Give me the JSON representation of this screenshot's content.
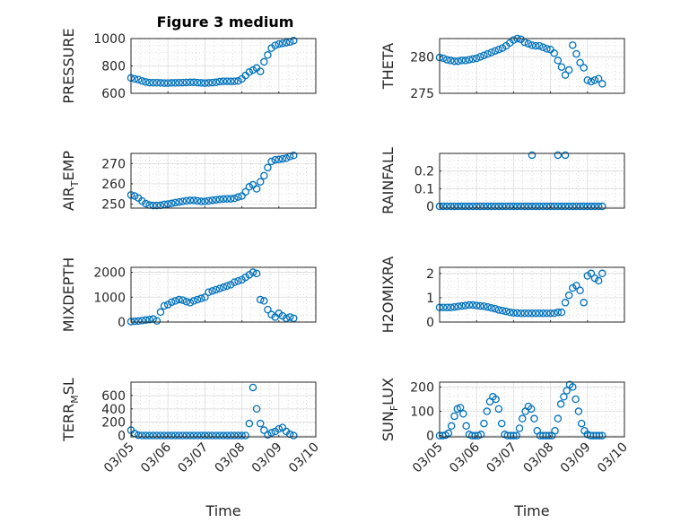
{
  "figure_title": "Figure 3 medium",
  "colors": {
    "series": "#0072BD",
    "axis": "#262626",
    "grid": "#dcdcdc",
    "minor_grid": "#bdbdbd"
  },
  "chart_data": [
    {
      "type": "scatter",
      "panel": 1,
      "ylabel": "PRESSURE",
      "yticks": [
        600,
        800,
        1000
      ],
      "ylim": [
        600,
        1000
      ],
      "xlim": [
        0,
        5
      ],
      "xticks": [
        0,
        1,
        2,
        3,
        4,
        5
      ],
      "x": [
        0.0,
        0.1,
        0.2,
        0.3,
        0.4,
        0.5,
        0.6,
        0.7,
        0.8,
        0.9,
        1.0,
        1.1,
        1.2,
        1.3,
        1.4,
        1.5,
        1.6,
        1.7,
        1.8,
        1.9,
        2.0,
        2.1,
        2.2,
        2.3,
        2.4,
        2.5,
        2.6,
        2.7,
        2.8,
        2.9,
        3.0,
        3.1,
        3.2,
        3.3,
        3.4,
        3.5,
        3.6,
        3.7,
        3.8,
        3.9,
        4.0,
        4.1,
        4.2,
        4.3,
        4.4
      ],
      "y": [
        712,
        705,
        700,
        690,
        683,
        678,
        677,
        677,
        676,
        675,
        675,
        676,
        676,
        677,
        678,
        679,
        680,
        680,
        678,
        676,
        675,
        676,
        678,
        680,
        685,
        688,
        688,
        687,
        688,
        690,
        705,
        730,
        755,
        770,
        785,
        760,
        830,
        880,
        930,
        950,
        960,
        965,
        970,
        975,
        985
      ]
    },
    {
      "type": "scatter",
      "panel": 2,
      "ylabel": "THETA",
      "yticks": [
        275,
        280
      ],
      "ylim": [
        275,
        282.5
      ],
      "xlim": [
        0,
        5
      ],
      "xticks": [
        0,
        1,
        2,
        3,
        4,
        5
      ],
      "x": [
        0.0,
        0.1,
        0.2,
        0.3,
        0.4,
        0.5,
        0.6,
        0.7,
        0.8,
        0.9,
        1.0,
        1.1,
        1.2,
        1.3,
        1.4,
        1.5,
        1.6,
        1.7,
        1.8,
        1.9,
        2.0,
        2.1,
        2.2,
        2.3,
        2.4,
        2.5,
        2.6,
        2.7,
        2.8,
        2.9,
        3.0,
        3.1,
        3.2,
        3.3,
        3.4,
        3.5,
        3.6,
        3.7,
        3.8,
        3.9,
        4.0,
        4.1,
        4.2,
        4.3,
        4.4
      ],
      "y": [
        279.9,
        279.8,
        279.6,
        279.5,
        279.4,
        279.4,
        279.5,
        279.5,
        279.6,
        279.7,
        279.8,
        280.0,
        280.2,
        280.4,
        280.6,
        280.8,
        281.0,
        281.2,
        281.5,
        281.9,
        282.3,
        282.5,
        282.4,
        282.0,
        281.8,
        281.6,
        281.5,
        281.5,
        281.3,
        281.1,
        281.0,
        280.5,
        279.5,
        278.6,
        277.5,
        278.2,
        281.6,
        280.4,
        279.2,
        278.5,
        276.8,
        276.6,
        276.8,
        277.0,
        276.3
      ]
    },
    {
      "type": "scatter",
      "panel": 3,
      "ylabel": "AIR_TEMP",
      "yticks": [
        250,
        260,
        270
      ],
      "ylim": [
        248,
        275
      ],
      "xlim": [
        0,
        5
      ],
      "xticks": [
        0,
        1,
        2,
        3,
        4,
        5
      ],
      "x": [
        0.0,
        0.1,
        0.2,
        0.3,
        0.4,
        0.5,
        0.6,
        0.7,
        0.8,
        0.9,
        1.0,
        1.1,
        1.2,
        1.3,
        1.4,
        1.5,
        1.6,
        1.7,
        1.8,
        1.9,
        2.0,
        2.1,
        2.2,
        2.3,
        2.4,
        2.5,
        2.6,
        2.7,
        2.8,
        2.9,
        3.0,
        3.1,
        3.2,
        3.3,
        3.4,
        3.5,
        3.6,
        3.7,
        3.8,
        3.9,
        4.0,
        4.1,
        4.2,
        4.3,
        4.4
      ],
      "y": [
        254.5,
        254.0,
        253.0,
        251.5,
        250.2,
        249.5,
        249.3,
        249.3,
        249.4,
        249.8,
        250.0,
        250.3,
        250.7,
        251.0,
        251.3,
        251.6,
        251.8,
        251.8,
        251.6,
        251.3,
        251.3,
        251.6,
        251.9,
        252.1,
        252.3,
        252.5,
        252.6,
        252.6,
        252.8,
        253.5,
        254.0,
        256.0,
        258.5,
        259.5,
        257.5,
        261.0,
        264.0,
        268.0,
        271.0,
        271.8,
        272.0,
        272.3,
        272.6,
        273.5,
        274.0
      ]
    },
    {
      "type": "scatter",
      "panel": 4,
      "ylabel": "RAINFALL",
      "yticks": [
        0,
        0.1,
        0.2
      ],
      "yticklabels": [
        "0",
        "0.1",
        "0.2"
      ],
      "ylim": [
        -0.01,
        0.3
      ],
      "xlim": [
        0,
        5
      ],
      "xticks": [
        0,
        1,
        2,
        3,
        4,
        5
      ],
      "x": [
        0.0,
        0.1,
        0.2,
        0.3,
        0.4,
        0.5,
        0.6,
        0.7,
        0.8,
        0.9,
        1.0,
        1.1,
        1.2,
        1.3,
        1.4,
        1.5,
        1.6,
        1.7,
        1.8,
        1.9,
        2.0,
        2.1,
        2.2,
        2.3,
        2.4,
        2.5,
        2.6,
        2.7,
        2.8,
        2.9,
        3.0,
        3.1,
        3.2,
        3.3,
        3.4,
        3.5,
        3.6,
        3.7,
        3.8,
        3.9,
        4.0,
        4.1,
        4.2,
        4.3,
        4.4,
        2.5,
        3.2,
        3.4
      ],
      "y": [
        0,
        0,
        0,
        0,
        0,
        0,
        0,
        0,
        0,
        0,
        0,
        0,
        0,
        0,
        0,
        0,
        0,
        0,
        0,
        0,
        0,
        0,
        0,
        0,
        0,
        0,
        0,
        0,
        0,
        0,
        0,
        0,
        0,
        0,
        0,
        0,
        0,
        0,
        0,
        0,
        0,
        0,
        0,
        0,
        0,
        0.29,
        0.29,
        0.29
      ]
    },
    {
      "type": "scatter",
      "panel": 5,
      "ylabel": "MIXDEPTH",
      "yticks": [
        0,
        1000,
        2000
      ],
      "ylim": [
        0,
        2200
      ],
      "xlim": [
        0,
        5
      ],
      "xticks": [
        0,
        1,
        2,
        3,
        4,
        5
      ],
      "x": [
        0.0,
        0.1,
        0.2,
        0.3,
        0.4,
        0.5,
        0.6,
        0.7,
        0.8,
        0.9,
        1.0,
        1.1,
        1.2,
        1.3,
        1.4,
        1.5,
        1.6,
        1.7,
        1.8,
        1.9,
        2.0,
        2.1,
        2.2,
        2.3,
        2.4,
        2.5,
        2.6,
        2.7,
        2.8,
        2.9,
        3.0,
        3.1,
        3.2,
        3.3,
        3.4,
        3.5,
        3.6,
        3.7,
        3.8,
        3.9,
        4.0,
        4.1,
        4.2,
        4.3,
        4.4
      ],
      "y": [
        20,
        30,
        40,
        60,
        80,
        100,
        120,
        50,
        400,
        650,
        700,
        800,
        850,
        900,
        880,
        820,
        780,
        850,
        900,
        950,
        1000,
        1200,
        1250,
        1300,
        1350,
        1400,
        1450,
        1500,
        1600,
        1650,
        1700,
        1800,
        1900,
        2000,
        1950,
        900,
        850,
        500,
        300,
        200,
        350,
        250,
        150,
        200,
        150
      ]
    },
    {
      "type": "scatter",
      "panel": 6,
      "ylabel": "H2OMIXRA",
      "yticks": [
        0,
        1,
        2
      ],
      "ylim": [
        0,
        2.25
      ],
      "xlim": [
        0,
        5
      ],
      "xticks": [
        0,
        1,
        2,
        3,
        4,
        5
      ],
      "x": [
        0.0,
        0.1,
        0.2,
        0.3,
        0.4,
        0.5,
        0.6,
        0.7,
        0.8,
        0.9,
        1.0,
        1.1,
        1.2,
        1.3,
        1.4,
        1.5,
        1.6,
        1.7,
        1.8,
        1.9,
        2.0,
        2.1,
        2.2,
        2.3,
        2.4,
        2.5,
        2.6,
        2.7,
        2.8,
        2.9,
        3.0,
        3.1,
        3.2,
        3.3,
        3.4,
        3.5,
        3.6,
        3.7,
        3.8,
        3.9,
        4.0,
        4.1,
        4.2,
        4.3,
        4.4
      ],
      "y": [
        0.6,
        0.6,
        0.6,
        0.6,
        0.62,
        0.64,
        0.66,
        0.68,
        0.7,
        0.7,
        0.68,
        0.66,
        0.65,
        0.62,
        0.58,
        0.55,
        0.5,
        0.47,
        0.44,
        0.4,
        0.38,
        0.37,
        0.36,
        0.36,
        0.36,
        0.36,
        0.36,
        0.36,
        0.36,
        0.36,
        0.36,
        0.36,
        0.4,
        0.4,
        0.8,
        1.1,
        1.4,
        1.5,
        1.3,
        0.8,
        1.9,
        2.0,
        1.8,
        1.7,
        2.0
      ]
    },
    {
      "type": "scatter",
      "panel": 7,
      "ylabel": "TERR_MSL",
      "yticks": [
        0,
        200,
        400,
        600
      ],
      "ylim": [
        -20,
        800
      ],
      "xlim": [
        0,
        5
      ],
      "xticks": [
        0,
        1,
        2,
        3,
        4,
        5
      ],
      "xticklabels": [
        "03/05",
        "03/06",
        "03/07",
        "03/08",
        "03/09",
        "03/10"
      ],
      "xlabel": "Time",
      "x": [
        0.0,
        0.1,
        0.2,
        0.3,
        0.4,
        0.5,
        0.6,
        0.7,
        0.8,
        0.9,
        1.0,
        1.1,
        1.2,
        1.3,
        1.4,
        1.5,
        1.6,
        1.7,
        1.8,
        1.9,
        2.0,
        2.1,
        2.2,
        2.3,
        2.4,
        2.5,
        2.6,
        2.7,
        2.8,
        2.9,
        3.0,
        3.1,
        3.2,
        3.3,
        3.4,
        3.5,
        3.6,
        3.7,
        3.8,
        3.9,
        4.0,
        4.1,
        4.2,
        4.3,
        4.4
      ],
      "y": [
        80,
        30,
        5,
        0,
        0,
        0,
        0,
        0,
        0,
        0,
        0,
        0,
        0,
        0,
        0,
        0,
        0,
        0,
        0,
        0,
        0,
        0,
        0,
        0,
        0,
        0,
        0,
        0,
        0,
        0,
        0,
        0,
        180,
        720,
        400,
        180,
        80,
        10,
        40,
        60,
        100,
        120,
        60,
        20,
        0
      ]
    },
    {
      "type": "scatter",
      "panel": 8,
      "ylabel": "SUN_FLUX",
      "yticks": [
        0,
        100,
        200
      ],
      "ylim": [
        -5,
        220
      ],
      "xlim": [
        0,
        5
      ],
      "xticks": [
        0,
        1,
        2,
        3,
        4,
        5
      ],
      "xticklabels": [
        "03/05",
        "03/06",
        "03/07",
        "03/08",
        "03/09",
        "03/10"
      ],
      "xlabel": "Time",
      "x": [
        0.0,
        0.08,
        0.16,
        0.24,
        0.32,
        0.4,
        0.48,
        0.56,
        0.64,
        0.72,
        0.8,
        0.88,
        0.96,
        1.04,
        1.12,
        1.2,
        1.28,
        1.36,
        1.44,
        1.52,
        1.6,
        1.68,
        1.76,
        1.84,
        1.92,
        2.0,
        2.08,
        2.16,
        2.24,
        2.32,
        2.4,
        2.48,
        2.56,
        2.64,
        2.72,
        2.8,
        2.88,
        2.96,
        3.04,
        3.12,
        3.2,
        3.28,
        3.36,
        3.44,
        3.52,
        3.6,
        3.68,
        3.76,
        3.84,
        3.92,
        4.0,
        4.08,
        4.16,
        4.24,
        4.32,
        4.4
      ],
      "y": [
        0,
        0,
        2,
        10,
        40,
        80,
        110,
        115,
        90,
        40,
        5,
        0,
        0,
        0,
        5,
        50,
        100,
        140,
        160,
        150,
        110,
        50,
        5,
        0,
        0,
        0,
        0,
        30,
        70,
        100,
        120,
        110,
        70,
        20,
        0,
        0,
        0,
        0,
        0,
        20,
        70,
        130,
        160,
        185,
        210,
        200,
        150,
        100,
        50,
        20,
        5,
        0,
        0,
        0,
        0,
        0
      ]
    }
  ]
}
